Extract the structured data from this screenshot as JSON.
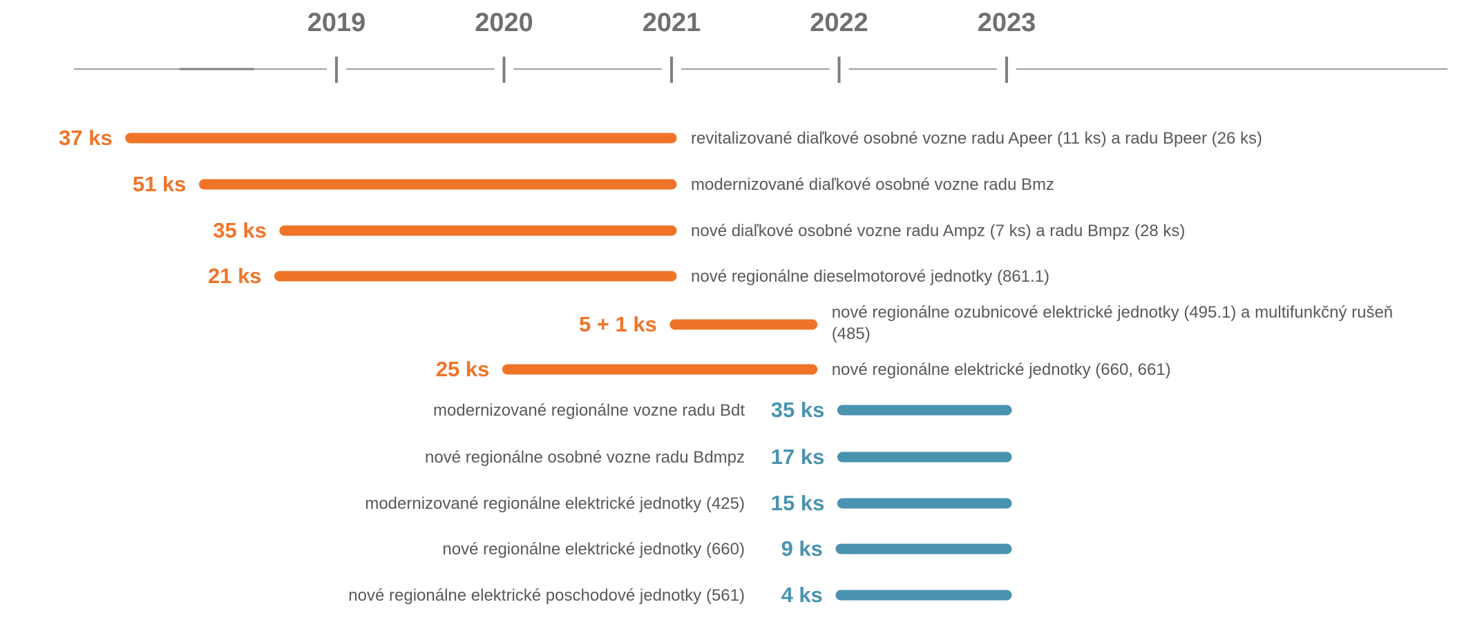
{
  "colors": {
    "axis": "#7f7f7f",
    "year_text": "#707070",
    "description_text": "#595959",
    "orange": "#f07428",
    "blue": "#4a93b0"
  },
  "chart_data": {
    "type": "timeline",
    "x_axis": {
      "ticks": [
        "2019",
        "2020",
        "2021",
        "2022",
        "2023"
      ],
      "range": [
        2017.48,
        2025.68
      ]
    },
    "series": [
      {
        "color_key": "orange",
        "items": [
          {
            "quantity": "37 ks",
            "description": "revitalizované diaľkové osobné vozne radu Apeer (11 ks) a radu Bpeer (26 ks)",
            "start": 2017.77,
            "end": 2021.0
          },
          {
            "quantity": "51 ks",
            "description": "modernizované diaľkové osobné vozne radu Bmz",
            "start": 2018.21,
            "end": 2021.0
          },
          {
            "quantity": "35 ks",
            "description": "nové diaľkové osobné vozne radu Ampz (7 ks) a radu Bmpz (28 ks)",
            "start": 2018.69,
            "end": 2021.0
          },
          {
            "quantity": "21 ks",
            "description": "nové regionálne dieselmotorové jednotky (861.1)",
            "start": 2018.66,
            "end": 2021.0
          },
          {
            "quantity": "5 + 1 ks",
            "description": "nové regionálne ozubnicové elektrické jednotky (495.1) a multifunkčný rušeň (485)",
            "start": 2021.02,
            "end": 2021.84
          },
          {
            "quantity": "25 ks",
            "description": "nové regionálne elektrické jednotky (660, 661)",
            "start": 2020.02,
            "end": 2021.84
          }
        ]
      },
      {
        "color_key": "blue",
        "items": [
          {
            "quantity": "35 ks",
            "description": "modernizované regionálne vozne radu Bdt",
            "start": 2022.02,
            "end": 2023.0
          },
          {
            "quantity": "17 ks",
            "description": "nové regionálne osobné vozne radu Bdmpz",
            "start": 2022.02,
            "end": 2023.0
          },
          {
            "quantity": "15 ks",
            "description": "modernizované regionálne elektrické jednotky (425)",
            "start": 2022.02,
            "end": 2023.0
          },
          {
            "quantity": "9 ks",
            "description": "nové regionálne elektrické jednotky (660)",
            "start": 2022.01,
            "end": 2023.0
          },
          {
            "quantity": "4 ks",
            "description": "nové regionálne elektrické poschodové jednotky (561)",
            "start": 2022.01,
            "end": 2023.0
          }
        ]
      }
    ]
  }
}
